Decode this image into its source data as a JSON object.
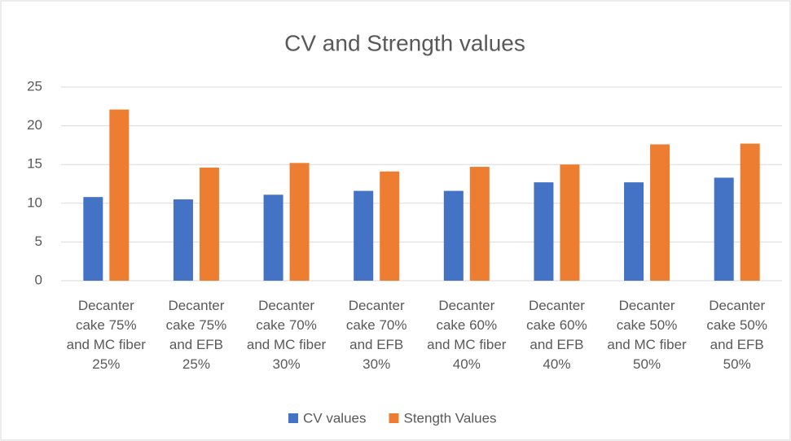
{
  "chart_data": {
    "type": "bar",
    "title": "CV and Strength values",
    "categories": [
      "Decanter cake 75% and MC fiber 25%",
      "Decanter cake 75% and EFB 25%",
      "Decanter cake 70% and MC fiber 30%",
      "Decanter cake 70% and EFB 30%",
      "Decanter cake 60% and MC fiber 40%",
      "Decanter cake 60% and EFB 40%",
      "Decanter cake 50% and MC fiber 50%",
      "Decanter cake 50% and EFB 50%"
    ],
    "series": [
      {
        "name": "CV values",
        "color": "#4472c4",
        "values": [
          10.8,
          10.5,
          11.1,
          11.6,
          11.6,
          12.7,
          12.7,
          13.3
        ]
      },
      {
        "name": "Stength Values",
        "color": "#ed7d31",
        "values": [
          22.1,
          14.6,
          15.2,
          14.1,
          14.7,
          15.0,
          17.6,
          17.7
        ]
      }
    ],
    "ylim": [
      0,
      25
    ],
    "yticks": [
      0,
      5,
      10,
      15,
      20,
      25
    ],
    "grid": true,
    "legend": "bottom"
  }
}
